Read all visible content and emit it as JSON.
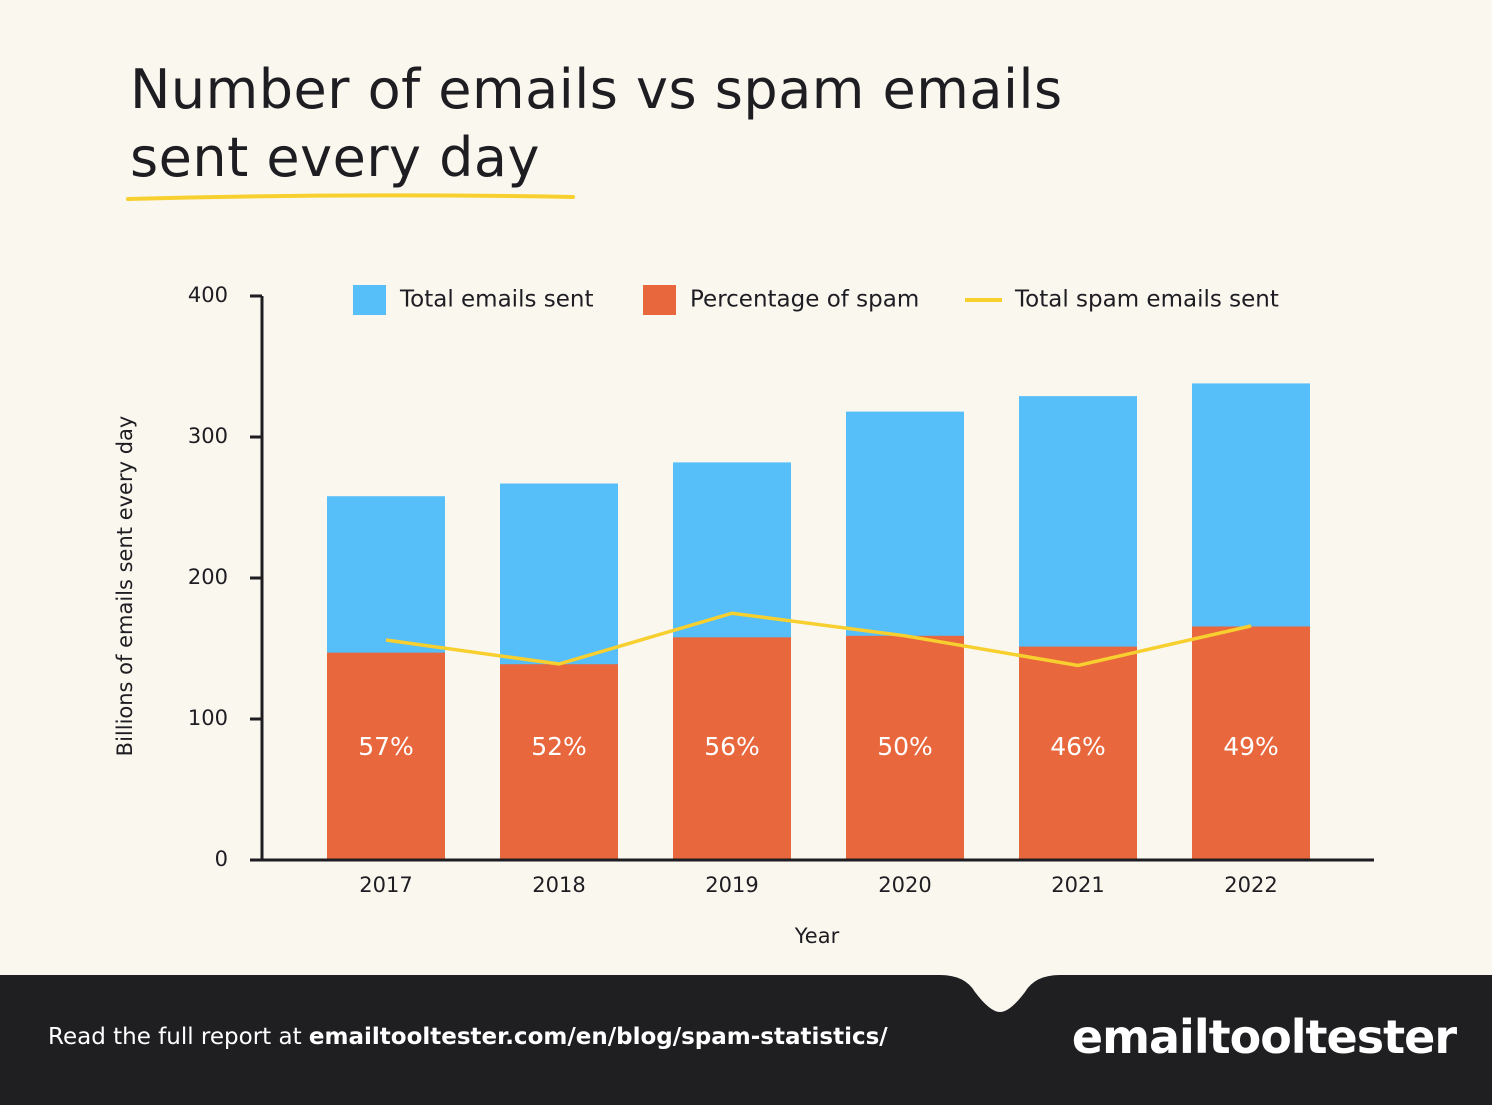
{
  "chart_data": {
    "type": "bar",
    "title": "Number of emails vs spam emails sent every day",
    "categories": [
      "2017",
      "2018",
      "2019",
      "2020",
      "2021",
      "2022"
    ],
    "series": [
      {
        "name": "Total emails sent",
        "color": "#56bef8",
        "values": [
          258,
          267,
          282,
          318,
          329,
          338
        ]
      },
      {
        "name": "Percentage of spam",
        "color": "#e8673c",
        "values": [
          57,
          52,
          56,
          50,
          46,
          49
        ],
        "value_labels": [
          "57%",
          "52%",
          "56%",
          "50%",
          "46%",
          "49%"
        ]
      },
      {
        "name": "Total spam emails sent",
        "type": "line",
        "color": "#f7d02f",
        "values": [
          156,
          139,
          175,
          159,
          138,
          166
        ]
      }
    ],
    "ylim": [
      0,
      400
    ],
    "yticks": [
      0,
      100,
      200,
      300,
      400
    ],
    "ylabel": "Billions of emails sent every day",
    "xlabel": "Year"
  },
  "footer": {
    "text": "Read the full report at",
    "link": "emailtooltester.com/en/blog/spam-statistics/",
    "logo": "emailtooltester"
  }
}
